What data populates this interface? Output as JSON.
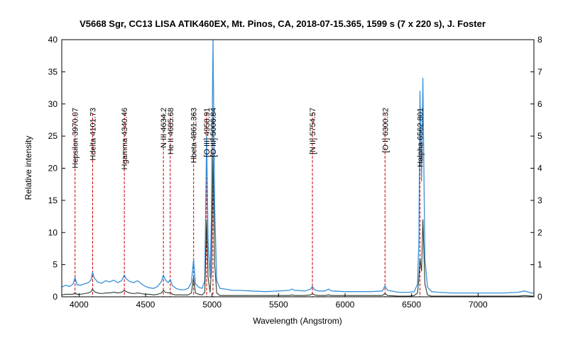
{
  "chart_data": {
    "type": "line",
    "title": "V5668 Sgr, CC13 LISA ATIK460EX, Mt. Pinos, CA,  2018-07-15.365,  1599 s (7 x 220 s),  J. Foster",
    "xlabel": "Wavelength (Angstrom)",
    "ylabel": "Relative intensity",
    "xlim": [
      3870,
      7420
    ],
    "ylim": [
      0,
      40
    ],
    "y2lim": [
      0,
      8
    ],
    "x_ticks": [
      "4000",
      "4500",
      "5000",
      "5500",
      "6000",
      "6500",
      "7000"
    ],
    "y_ticks": [
      "0",
      "5",
      "10",
      "15",
      "20",
      "25",
      "30",
      "35",
      "40"
    ],
    "y2_ticks": [
      "0",
      "1",
      "2",
      "3",
      "4",
      "5",
      "6",
      "7",
      "8"
    ],
    "colors": {
      "blue_series": "#3a8fd8",
      "dark_series": "#2b3b2b",
      "line_markers": "#cc0000",
      "frame": "#000000"
    },
    "lines": [
      {
        "label": "Hepsilon 3970.07",
        "x": 3970.07
      },
      {
        "label": "Hdelta 4101.73",
        "x": 4101.73
      },
      {
        "label": "Hgamma 4340.46",
        "x": 4340.46
      },
      {
        "label": "N III 4634.2",
        "x": 4634.2
      },
      {
        "label": "He II 4685.68",
        "x": 4685.68
      },
      {
        "label": "Hbeta 4861.363",
        "x": 4861.363
      },
      {
        "label": "[O III] 4958.91",
        "x": 4958.91
      },
      {
        "label": "[O III] 5006.84",
        "x": 5006.84
      },
      {
        "label": "[N II] 5754.57",
        "x": 5754.57
      },
      {
        "label": "[O I] 6300.32",
        "x": 6300.32
      },
      {
        "label": "Halpha 6562.801",
        "x": 6562.801
      }
    ],
    "series": [
      {
        "color": "#3a8fd8",
        "x": [
          3870,
          3900,
          3930,
          3955,
          3970,
          3985,
          4010,
          4040,
          4070,
          4090,
          4101,
          4115,
          4140,
          4170,
          4200,
          4230,
          4260,
          4290,
          4320,
          4340,
          4355,
          4380,
          4410,
          4440,
          4470,
          4500,
          4530,
          4560,
          4590,
          4620,
          4634,
          4650,
          4670,
          4686,
          4700,
          4730,
          4760,
          4790,
          4820,
          4845,
          4861,
          4875,
          4900,
          4925,
          4945,
          4959,
          4970,
          4985,
          4995,
          5007,
          5020,
          5035,
          5060,
          5100,
          5150,
          5200,
          5300,
          5400,
          5500,
          5580,
          5600,
          5620,
          5700,
          5740,
          5755,
          5770,
          5800,
          5850,
          5875,
          5900,
          6000,
          6100,
          6200,
          6280,
          6300,
          6320,
          6400,
          6480,
          6520,
          6545,
          6555,
          6563,
          6575,
          6585,
          6600,
          6620,
          6650,
          6700,
          6800,
          6900,
          7000,
          7100,
          7200,
          7300,
          7350,
          7400,
          7420
        ],
        "y": [
          1.5,
          1.8,
          1.6,
          2.0,
          3.0,
          1.9,
          1.8,
          2.0,
          2.2,
          2.6,
          3.8,
          2.9,
          2.3,
          2.1,
          2.5,
          2.3,
          2.6,
          2.2,
          2.5,
          3.4,
          2.8,
          2.4,
          2.2,
          2.5,
          2.0,
          1.6,
          1.4,
          1.3,
          1.6,
          2.4,
          3.4,
          2.6,
          2.2,
          2.7,
          1.8,
          1.3,
          1.1,
          1.1,
          1.3,
          2.2,
          5.8,
          2.0,
          1.5,
          1.3,
          2.5,
          25,
          8.5,
          3.0,
          12,
          40,
          14,
          2.5,
          1.3,
          1.2,
          1.0,
          1.0,
          0.9,
          0.8,
          0.9,
          1.0,
          1.2,
          1.0,
          0.9,
          1.2,
          1.6,
          1.1,
          0.9,
          0.9,
          1.2,
          0.9,
          0.8,
          0.8,
          0.8,
          0.9,
          1.7,
          1.0,
          0.7,
          0.7,
          0.8,
          2.0,
          9.0,
          32,
          18,
          34,
          6.0,
          1.5,
          0.8,
          0.7,
          0.6,
          0.6,
          0.6,
          0.6,
          0.6,
          0.7,
          0.9,
          0.6,
          0.6
        ]
      },
      {
        "color": "#2b3b2b",
        "x": [
          3870,
          3900,
          3930,
          3955,
          3970,
          3985,
          4010,
          4040,
          4070,
          4090,
          4101,
          4115,
          4140,
          4170,
          4200,
          4230,
          4260,
          4290,
          4320,
          4340,
          4355,
          4380,
          4410,
          4440,
          4470,
          4500,
          4530,
          4560,
          4590,
          4620,
          4634,
          4650,
          4670,
          4686,
          4700,
          4730,
          4760,
          4790,
          4820,
          4845,
          4861,
          4875,
          4900,
          4925,
          4945,
          4959,
          4970,
          4985,
          4995,
          5007,
          5020,
          5035,
          5060,
          5100,
          5150,
          5200,
          5300,
          5400,
          5500,
          5580,
          5600,
          5620,
          5700,
          5740,
          5755,
          5770,
          5800,
          5850,
          5875,
          5900,
          6000,
          6100,
          6200,
          6280,
          6300,
          6320,
          6400,
          6480,
          6520,
          6545,
          6555,
          6563,
          6575,
          6585,
          6600,
          6620,
          6650,
          6700,
          6800,
          6900,
          7000,
          7100,
          7200,
          7300,
          7350,
          7400,
          7420
        ],
        "y": [
          0.3,
          0.4,
          0.4,
          0.4,
          0.6,
          0.4,
          0.4,
          0.5,
          0.6,
          0.8,
          1.2,
          0.8,
          0.6,
          0.5,
          0.6,
          0.6,
          0.7,
          0.6,
          0.7,
          1.0,
          0.8,
          0.6,
          0.5,
          0.6,
          0.5,
          0.4,
          0.4,
          0.3,
          0.4,
          0.6,
          1.0,
          0.7,
          0.6,
          0.7,
          0.4,
          0.3,
          0.3,
          0.3,
          0.3,
          0.6,
          3.0,
          0.6,
          0.4,
          0.3,
          0.7,
          12,
          3.0,
          0.7,
          4.0,
          22,
          5.0,
          0.6,
          0.2,
          0.2,
          0.2,
          0.2,
          0.2,
          0.2,
          0.2,
          0.2,
          0.3,
          0.2,
          0.2,
          0.3,
          0.5,
          0.3,
          0.2,
          0.2,
          0.3,
          0.2,
          0.2,
          0.2,
          0.2,
          0.2,
          0.5,
          0.2,
          0.1,
          0.1,
          0.2,
          0.6,
          3.0,
          6.0,
          4.0,
          12,
          2.0,
          0.3,
          0.1,
          0.1,
          0.1,
          0.1,
          0.1,
          0.1,
          0.1,
          0.1,
          0.2,
          0.1,
          0.1
        ]
      }
    ]
  }
}
